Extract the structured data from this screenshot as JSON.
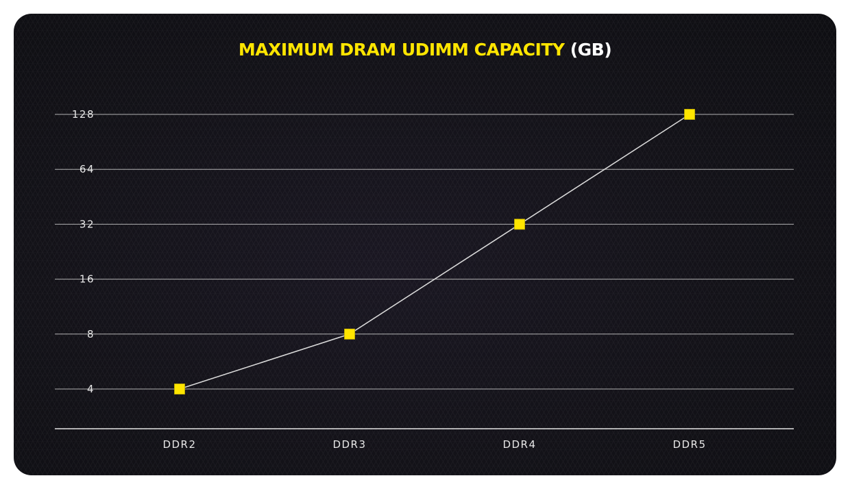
{
  "chart_data": {
    "type": "line",
    "title": "MAXIMUM DRAM UDIMM CAPACITY",
    "title_unit": "(GB)",
    "xlabel": "",
    "ylabel": "",
    "categories": [
      "DDR2",
      "DDR3",
      "DDR4",
      "DDR5"
    ],
    "series": [
      {
        "values": [
          4,
          8,
          32,
          128
        ]
      }
    ],
    "y_scale": "log2",
    "y_ticks": [
      4,
      8,
      16,
      32,
      64,
      128
    ],
    "y_tick_labels": [
      "4",
      "8",
      "16",
      "32",
      "64",
      "128"
    ],
    "ylim": [
      2,
      128
    ],
    "grid": true,
    "colors": {
      "title": "#ffe500",
      "title_unit": "#ffffff",
      "marker": "#ffe500",
      "line": "#d9d9d9",
      "grid": "#cfcfcf",
      "background": "#141319"
    }
  }
}
